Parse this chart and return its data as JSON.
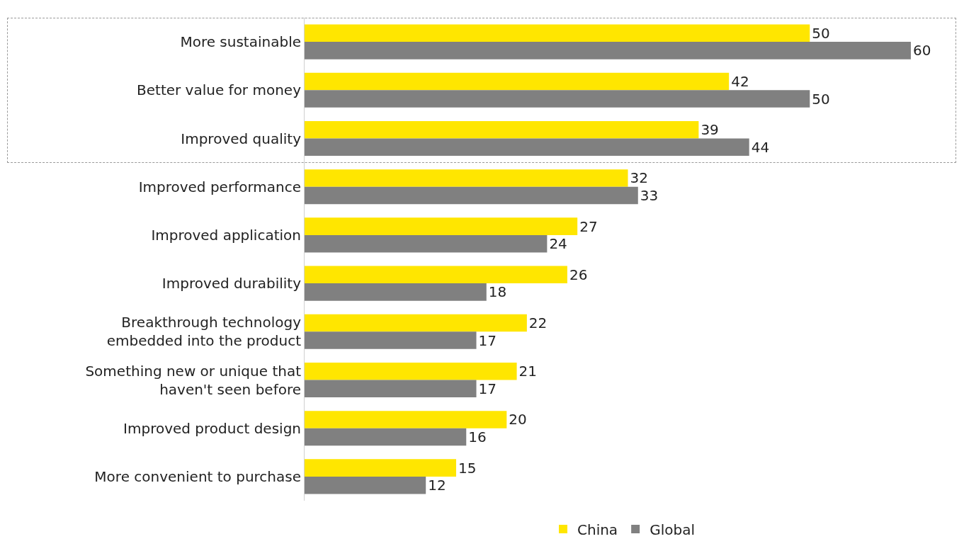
{
  "chart_data": {
    "type": "bar",
    "orientation": "horizontal",
    "categories": [
      "More sustainable",
      "Better value for money",
      "Improved quality",
      "Improved performance",
      "Improved application",
      "Improved durability",
      "Breakthrough technology\nembedded into the product",
      "Something new or unique that\nhaven't seen before",
      "Improved product design",
      "More convenient to purchase"
    ],
    "series": [
      {
        "name": "China",
        "color": "#ffe600",
        "values": [
          50,
          42,
          39,
          32,
          27,
          26,
          22,
          21,
          20,
          15
        ]
      },
      {
        "name": "Global",
        "color": "#808080",
        "values": [
          60,
          50,
          44,
          33,
          24,
          18,
          17,
          17,
          16,
          12
        ]
      }
    ],
    "data_labels": true,
    "grid": false,
    "legend": "bottom",
    "tick_labels": "y"
  }
}
